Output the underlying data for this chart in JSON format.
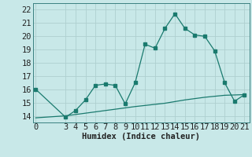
{
  "xlabel": "Humidex (Indice chaleur)",
  "bg_color": "#c8e8e8",
  "line_color": "#1a7a6e",
  "grid_color": "#aed0d0",
  "curve_x": [
    0,
    3,
    4,
    5,
    6,
    7,
    8,
    9,
    10,
    11,
    12,
    13,
    14,
    15,
    16,
    17,
    18,
    19,
    20,
    21
  ],
  "curve_y": [
    16.0,
    13.9,
    14.4,
    15.2,
    16.3,
    16.4,
    16.3,
    14.9,
    16.5,
    19.4,
    19.1,
    20.6,
    21.7,
    20.6,
    20.1,
    20.0,
    18.9,
    16.5,
    15.1,
    15.6
  ],
  "trend_x": [
    0,
    3,
    5,
    8,
    10,
    13,
    15,
    17,
    19,
    21
  ],
  "trend_y": [
    13.85,
    14.0,
    14.2,
    14.5,
    14.7,
    14.95,
    15.2,
    15.4,
    15.55,
    15.6
  ],
  "ylim": [
    13.5,
    22.5
  ],
  "xlim": [
    -0.3,
    21.5
  ],
  "yticks": [
    14,
    15,
    16,
    17,
    18,
    19,
    20,
    21,
    22
  ],
  "xticks": [
    0,
    3,
    4,
    5,
    6,
    7,
    8,
    9,
    10,
    11,
    12,
    13,
    14,
    15,
    16,
    17,
    18,
    19,
    20,
    21
  ],
  "tick_fontsize": 7.5,
  "xlabel_fontsize": 7.5,
  "spine_color": "#3a8080"
}
